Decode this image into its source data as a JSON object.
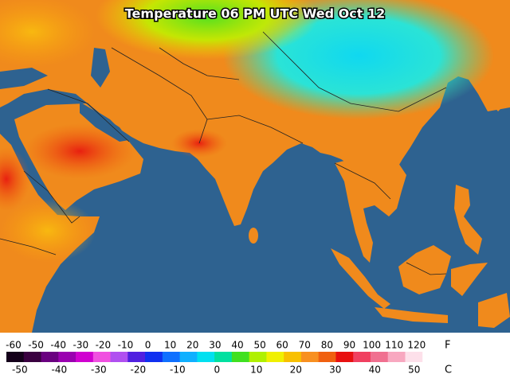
{
  "title": "Temperature 06 PM UTC Wed Oct 12",
  "legend": {
    "fahrenheit": {
      "unit": "F",
      "lim": [
        -63.2,
        130.4
      ],
      "ticks": [
        -60,
        -50,
        -40,
        -30,
        -20,
        -10,
        0,
        10,
        20,
        30,
        40,
        50,
        60,
        70,
        80,
        90,
        100,
        110,
        120
      ]
    },
    "celsius": {
      "unit": "C",
      "lim": [
        -53.4,
        56.5
      ],
      "ticks": [
        -50,
        -40,
        -30,
        -20,
        -10,
        0,
        10,
        20,
        30,
        40,
        50
      ]
    },
    "colors": [
      "#14001a",
      "#3a0040",
      "#6a0080",
      "#9a00b0",
      "#d000d0",
      "#f050e0",
      "#b050f0",
      "#5020e0",
      "#1030f0",
      "#1070ff",
      "#10b0ff",
      "#00e0f0",
      "#00e0a0",
      "#40e020",
      "#b0f000",
      "#f0f000",
      "#f8c000",
      "#f89020",
      "#f06010",
      "#e81010",
      "#f04060",
      "#f07090",
      "#f8a8c0",
      "#fde0ea",
      "#ffffff"
    ]
  }
}
